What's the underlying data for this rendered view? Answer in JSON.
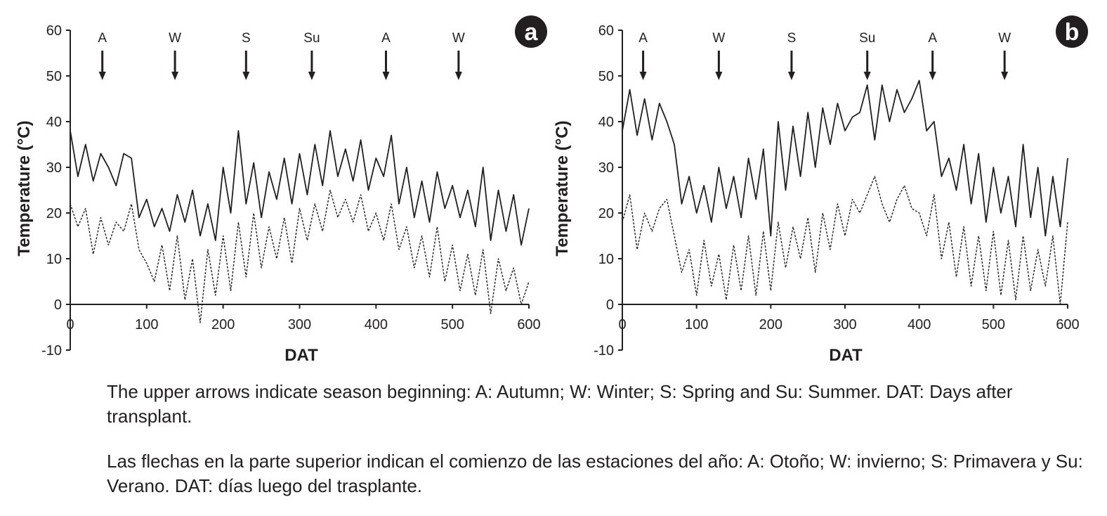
{
  "colors": {
    "ink": "#231f20",
    "background": "#ffffff"
  },
  "captions": {
    "english": "The upper arrows indicate season beginning: A: Autumn; W: Winter; S: Spring and Su: Summer. DAT: Days after transplant.",
    "spanish": "Las flechas en la parte superior indican el comienzo de las estaciones del año: A: Otoño; W: invierno; S: Primavera y Su: Verano. DAT: días luego del trasplante."
  },
  "chart_data": [
    {
      "panel": "a",
      "type": "line",
      "xlabel": "DAT",
      "ylabel": "Temperature (°C)",
      "xlim": [
        0,
        600
      ],
      "ylim": [
        -10,
        60
      ],
      "xticks": [
        0,
        100,
        200,
        300,
        400,
        500,
        600
      ],
      "yticks": [
        -10,
        0,
        10,
        20,
        30,
        40,
        50,
        60
      ],
      "season_markers": [
        {
          "label": "A",
          "x": 42
        },
        {
          "label": "W",
          "x": 137
        },
        {
          "label": "S",
          "x": 230
        },
        {
          "label": "Su",
          "x": 316
        },
        {
          "label": "A",
          "x": 413
        },
        {
          "label": "W",
          "x": 508
        }
      ],
      "series": [
        {
          "style": "solid",
          "x": [
            0,
            10,
            20,
            30,
            40,
            50,
            60,
            70,
            80,
            90,
            100,
            110,
            120,
            130,
            140,
            150,
            160,
            170,
            180,
            190,
            200,
            210,
            220,
            230,
            240,
            250,
            260,
            270,
            280,
            290,
            300,
            310,
            320,
            330,
            340,
            350,
            360,
            370,
            380,
            390,
            400,
            410,
            420,
            430,
            440,
            450,
            460,
            470,
            480,
            490,
            500,
            510,
            520,
            530,
            540,
            550,
            560,
            570,
            580,
            590,
            600
          ],
          "y": [
            38,
            28,
            35,
            27,
            33,
            30,
            26,
            33,
            32,
            19,
            23,
            17,
            21,
            16,
            24,
            18,
            25,
            15,
            22,
            14,
            30,
            20,
            38,
            22,
            31,
            19,
            29,
            23,
            32,
            22,
            33,
            24,
            35,
            26,
            38,
            28,
            34,
            27,
            36,
            25,
            32,
            28,
            37,
            22,
            30,
            19,
            27,
            18,
            29,
            21,
            26,
            19,
            25,
            17,
            30,
            14,
            25,
            16,
            24,
            13,
            21
          ]
        },
        {
          "style": "dashed",
          "x": [
            0,
            10,
            20,
            30,
            40,
            50,
            60,
            70,
            80,
            90,
            100,
            110,
            120,
            130,
            140,
            150,
            160,
            170,
            180,
            190,
            200,
            210,
            220,
            230,
            240,
            250,
            260,
            270,
            280,
            290,
            300,
            310,
            320,
            330,
            340,
            350,
            360,
            370,
            380,
            390,
            400,
            410,
            420,
            430,
            440,
            450,
            460,
            470,
            480,
            490,
            500,
            510,
            520,
            530,
            540,
            550,
            560,
            570,
            580,
            590,
            600
          ],
          "y": [
            22,
            17,
            21,
            11,
            19,
            13,
            18,
            16,
            22,
            12,
            9,
            5,
            13,
            3,
            15,
            1,
            10,
            -4,
            12,
            2,
            15,
            3,
            18,
            6,
            20,
            8,
            17,
            10,
            19,
            9,
            21,
            14,
            22,
            16,
            25,
            19,
            23,
            18,
            24,
            16,
            20,
            14,
            22,
            12,
            17,
            8,
            15,
            6,
            17,
            5,
            13,
            3,
            11,
            2,
            12,
            -2,
            10,
            3,
            8,
            0,
            5
          ]
        }
      ]
    },
    {
      "panel": "b",
      "type": "line",
      "xlabel": "DAT",
      "ylabel": "Temperature (°C)",
      "xlim": [
        0,
        600
      ],
      "ylim": [
        -10,
        60
      ],
      "xticks": [
        0,
        100,
        200,
        300,
        400,
        500,
        600
      ],
      "yticks": [
        -10,
        0,
        10,
        20,
        30,
        40,
        50,
        60
      ],
      "season_markers": [
        {
          "label": "A",
          "x": 28
        },
        {
          "label": "W",
          "x": 130
        },
        {
          "label": "S",
          "x": 228
        },
        {
          "label": "Su",
          "x": 330
        },
        {
          "label": "A",
          "x": 418
        },
        {
          "label": "W",
          "x": 515
        }
      ],
      "series": [
        {
          "style": "solid",
          "x": [
            0,
            10,
            20,
            30,
            40,
            50,
            60,
            70,
            80,
            90,
            100,
            110,
            120,
            130,
            140,
            150,
            160,
            170,
            180,
            190,
            200,
            210,
            220,
            230,
            240,
            250,
            260,
            270,
            280,
            290,
            300,
            310,
            320,
            330,
            340,
            350,
            360,
            370,
            380,
            390,
            400,
            410,
            420,
            430,
            440,
            450,
            460,
            470,
            480,
            490,
            500,
            510,
            520,
            530,
            540,
            550,
            560,
            570,
            580,
            590,
            600
          ],
          "y": [
            38,
            47,
            37,
            45,
            36,
            44,
            40,
            35,
            22,
            28,
            20,
            26,
            18,
            30,
            21,
            28,
            19,
            32,
            23,
            34,
            15,
            40,
            25,
            39,
            28,
            42,
            30,
            43,
            35,
            44,
            38,
            41,
            42,
            48,
            36,
            48,
            40,
            47,
            42,
            45,
            49,
            38,
            40,
            28,
            32,
            25,
            35,
            22,
            33,
            18,
            30,
            20,
            28,
            17,
            35,
            19,
            30,
            15,
            28,
            17,
            32
          ]
        },
        {
          "style": "dashed",
          "x": [
            0,
            10,
            20,
            30,
            40,
            50,
            60,
            70,
            80,
            90,
            100,
            110,
            120,
            130,
            140,
            150,
            160,
            170,
            180,
            190,
            200,
            210,
            220,
            230,
            240,
            250,
            260,
            270,
            280,
            290,
            300,
            310,
            320,
            330,
            340,
            350,
            360,
            370,
            380,
            390,
            400,
            410,
            420,
            430,
            440,
            450,
            460,
            470,
            480,
            490,
            500,
            510,
            520,
            530,
            540,
            550,
            560,
            570,
            580,
            590,
            600
          ],
          "y": [
            18,
            24,
            12,
            20,
            16,
            21,
            23,
            15,
            7,
            12,
            2,
            14,
            4,
            11,
            1,
            13,
            3,
            15,
            2,
            16,
            3,
            18,
            8,
            17,
            10,
            19,
            7,
            20,
            12,
            22,
            15,
            23,
            20,
            24,
            28,
            22,
            18,
            23,
            26,
            21,
            20,
            15,
            24,
            10,
            18,
            6,
            17,
            4,
            15,
            3,
            16,
            2,
            14,
            1,
            15,
            3,
            12,
            4,
            15,
            0,
            18
          ]
        }
      ]
    }
  ]
}
